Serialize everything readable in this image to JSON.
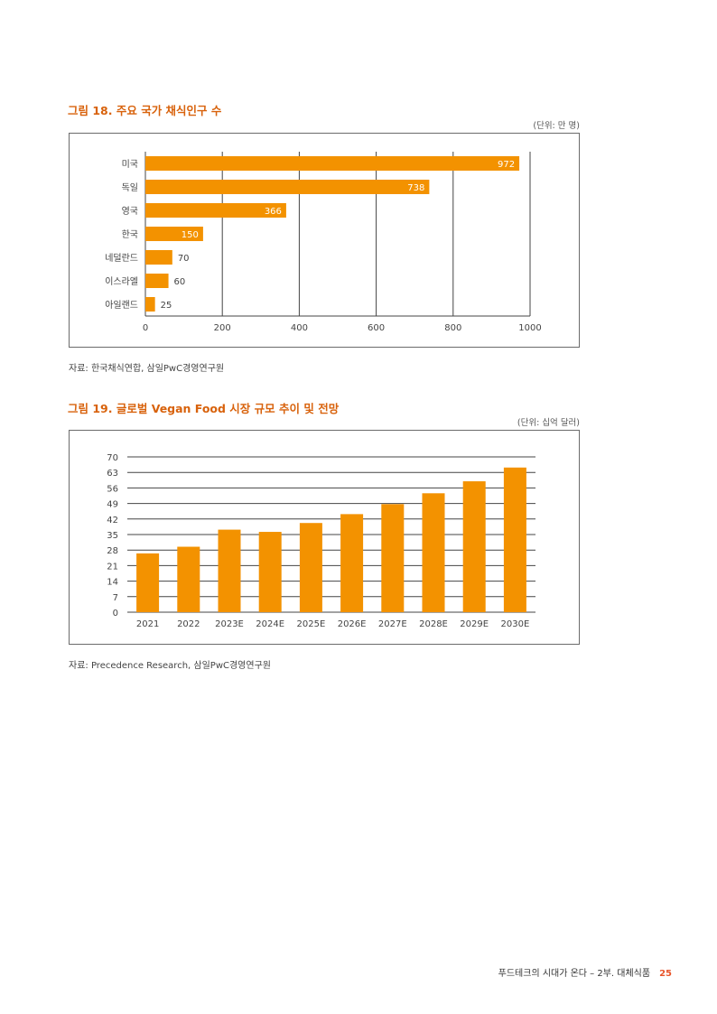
{
  "figure18": {
    "title": "그림 18. 주요 국가 채식인구 수",
    "unit": "(단위: 만 명)",
    "source": "자료: 한국채식연합, 삼일PwC경영연구원"
  },
  "figure19": {
    "title": "그림 19. 글로벌 Vegan Food 시장 규모 추이 및 전망",
    "unit": "(단위: 십억 달러)",
    "source": "자료: Precedence Research, 삼일PwC경영연구원"
  },
  "footer": {
    "text": "푸드테크의 시대가 온다 – 2부. 대체식품",
    "page": "25"
  },
  "chart_data": [
    {
      "type": "bar",
      "orientation": "horizontal",
      "categories": [
        "미국",
        "독일",
        "영국",
        "한국",
        "네덜란드",
        "이스라엘",
        "아일랜드"
      ],
      "values": [
        972,
        738,
        366,
        150,
        70,
        60,
        25
      ],
      "data_labels": [
        "972",
        "738",
        "366",
        "150",
        "70",
        "60",
        "25"
      ],
      "xlim": [
        0,
        1000
      ],
      "xticks": [
        "0",
        "200",
        "400",
        "600",
        "800",
        "1000"
      ],
      "grid": "vertical",
      "color": "#f39200"
    },
    {
      "type": "bar",
      "orientation": "vertical",
      "categories": [
        "2021",
        "2022",
        "2023E",
        "2024E",
        "2025E",
        "2026E",
        "2027E",
        "2028E",
        "2029E",
        "2030E"
      ],
      "values": [
        26.5,
        29.5,
        37.2,
        36.2,
        40.2,
        44.2,
        48.7,
        53.6,
        59.0,
        65.2
      ],
      "ylim": [
        0,
        70
      ],
      "yticks": [
        "0",
        "7",
        "14",
        "21",
        "28",
        "35",
        "42",
        "49",
        "56",
        "63",
        "70"
      ],
      "grid": "horizontal",
      "color": "#f39200"
    }
  ]
}
